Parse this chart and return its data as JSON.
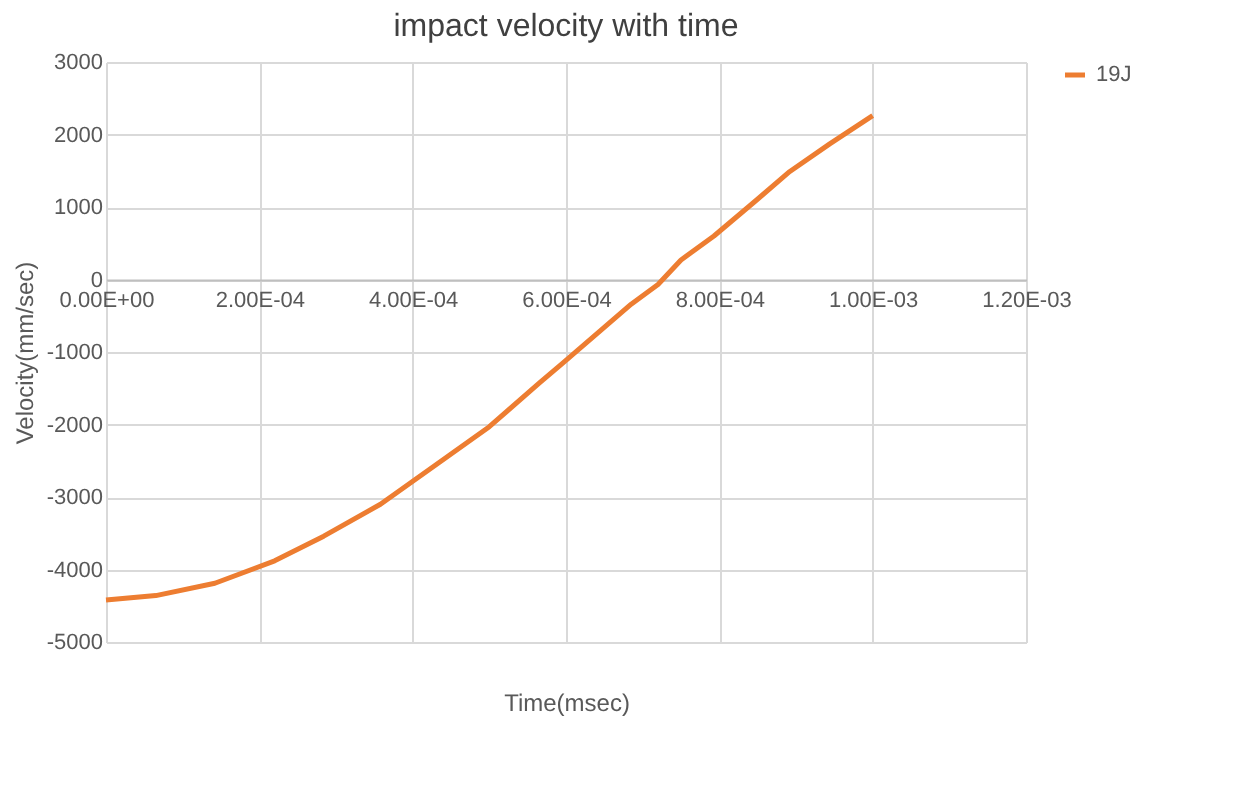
{
  "chart_data": {
    "type": "line",
    "title": "impact velocity with time",
    "xlabel": "Time(msec)",
    "ylabel": "Velocity(mm/sec)",
    "xlim": [
      0,
      0.0012
    ],
    "ylim": [
      -5000,
      3000
    ],
    "xticks": [
      {
        "value": 0,
        "label": "0.00E+00"
      },
      {
        "value": 0.0002,
        "label": "2.00E-04"
      },
      {
        "value": 0.0004,
        "label": "4.00E-04"
      },
      {
        "value": 0.0006,
        "label": "6.00E-04"
      },
      {
        "value": 0.0008,
        "label": "8.00E-04"
      },
      {
        "value": 0.001,
        "label": "1.00E-03"
      },
      {
        "value": 0.0012,
        "label": "1.20E-03"
      }
    ],
    "yticks": [
      -5000,
      -4000,
      -3000,
      -2000,
      -1000,
      0,
      1000,
      2000,
      3000
    ],
    "grid": true,
    "legend": "right",
    "series": [
      {
        "name": "19J",
        "color": "#ed7d31",
        "x": [
          0,
          6.5e-05,
          0.000142,
          0.00022,
          0.000284,
          0.000358,
          0.000435,
          0.0005,
          0.000565,
          0.000595,
          0.000651,
          0.000685,
          0.00072,
          0.00075,
          0.000793,
          0.000849,
          0.000892,
          0.000944,
          0.001
        ],
        "values": [
          -4420,
          -4360,
          -4190,
          -3880,
          -3540,
          -3100,
          -2520,
          -2030,
          -1430,
          -1160,
          -650,
          -340,
          -70,
          270,
          600,
          1100,
          1490,
          1870,
          2260
        ]
      }
    ]
  }
}
